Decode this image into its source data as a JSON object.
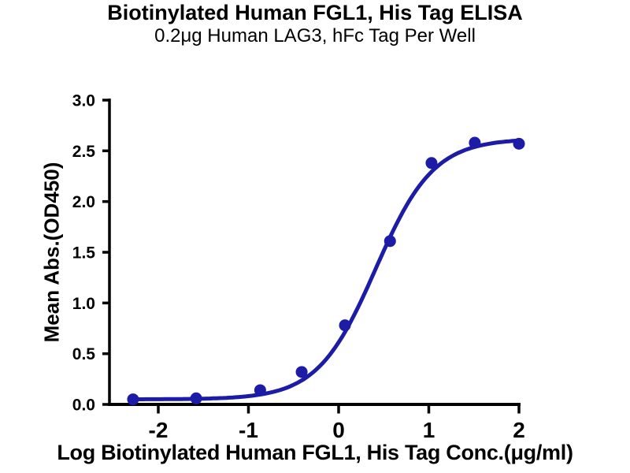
{
  "page": {
    "background": "#ffffff",
    "axis_color": "#000000"
  },
  "chart_data": {
    "type": "scatter",
    "title": "Biotinylated Human FGL1, His Tag ELISA",
    "subtitle": "0.2μg Human LAG3, hFc Tag Per Well",
    "xlabel": "Log Biotinylated Human FGL1, His Tag Conc.(μg/ml)",
    "ylabel": "Mean Abs.(OD450)",
    "xlim": [
      -2.56,
      2.02
    ],
    "ylim": [
      0,
      3.0
    ],
    "grid": false,
    "legend": "none",
    "x_ticks": [
      {
        "value": -2,
        "label": "-2"
      },
      {
        "value": -1,
        "label": "-1"
      },
      {
        "value": 0,
        "label": "0"
      },
      {
        "value": 1,
        "label": "1"
      },
      {
        "value": 2,
        "label": "2"
      }
    ],
    "y_ticks": [
      {
        "value": 0.0,
        "label": "0.0"
      },
      {
        "value": 0.5,
        "label": "0.5"
      },
      {
        "value": 1.0,
        "label": "1.0"
      },
      {
        "value": 1.5,
        "label": "1.5"
      },
      {
        "value": 2.0,
        "label": "2.0"
      },
      {
        "value": 2.5,
        "label": "2.5"
      },
      {
        "value": 3.0,
        "label": "3.0"
      }
    ],
    "series": [
      {
        "color": "#1c1ca6",
        "marker": "circle",
        "marker_radius": 7.5,
        "line_width": 5,
        "points": [
          {
            "x": -2.28,
            "y": 0.05
          },
          {
            "x": -1.58,
            "y": 0.06
          },
          {
            "x": -0.87,
            "y": 0.14
          },
          {
            "x": -0.41,
            "y": 0.32
          },
          {
            "x": 0.07,
            "y": 0.78
          },
          {
            "x": 0.57,
            "y": 1.61
          },
          {
            "x": 1.03,
            "y": 2.38
          },
          {
            "x": 1.51,
            "y": 2.58
          },
          {
            "x": 2.0,
            "y": 2.57
          }
        ],
        "fit_curve": {
          "model": "4PL",
          "bottom": 0.05,
          "top": 2.62,
          "log_ec50": 0.41,
          "hill_slope": 1.35
        }
      }
    ]
  }
}
